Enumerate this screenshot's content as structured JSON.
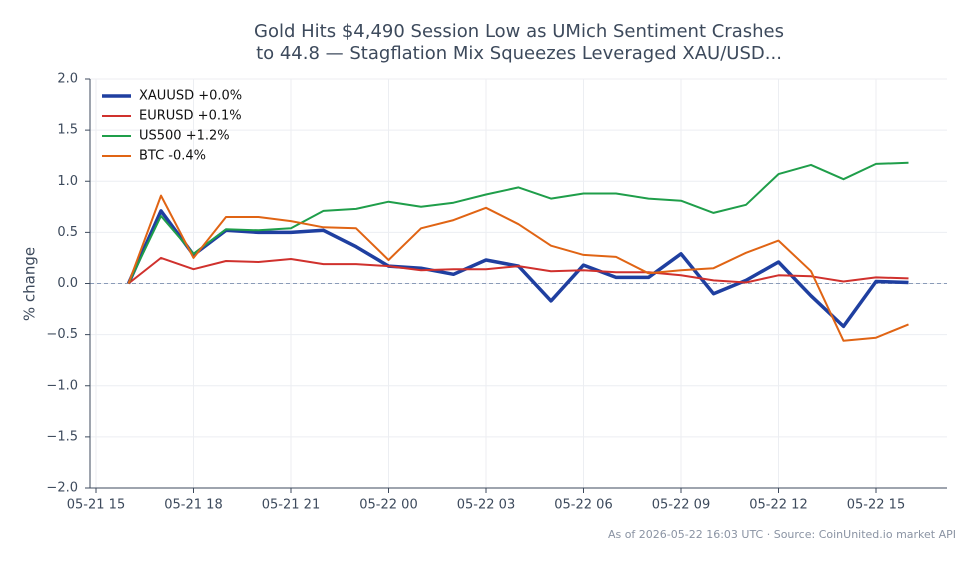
{
  "chart_data": {
    "type": "line",
    "title": "Gold Hits $4,490 Session Low as UMich Sentiment Crashes\nto 44.8 — Stagflation Mix Squeezes Leveraged XAU/USD...",
    "ylabel": "% change",
    "footer": "As of 2026-05-22 16:03 UTC · Source: CoinUnited.io market API",
    "x": [
      "05-21 16",
      "05-21 17",
      "05-21 18",
      "05-21 19",
      "05-21 20",
      "05-21 21",
      "05-21 22",
      "05-21 23",
      "05-22 00",
      "05-22 01",
      "05-22 02",
      "05-22 03",
      "05-22 04",
      "05-22 05",
      "05-22 06",
      "05-22 07",
      "05-22 08",
      "05-22 09",
      "05-22 10",
      "05-22 11",
      "05-22 12",
      "05-22 13",
      "05-22 14",
      "05-22 15",
      "05-22 16"
    ],
    "xlim": [
      "05-21 15",
      "05-22 17"
    ],
    "xticks": [
      "05-21 15",
      "05-21 18",
      "05-21 21",
      "05-22 00",
      "05-22 03",
      "05-22 06",
      "05-22 09",
      "05-22 12",
      "05-22 15"
    ],
    "ylim": [
      -2,
      2
    ],
    "yticks": [
      {
        "value": -2,
        "label": "−2.0"
      },
      {
        "value": -1.5,
        "label": "−1.5"
      },
      {
        "value": -1,
        "label": "−1.0"
      },
      {
        "value": -0.5,
        "label": "−0.5"
      },
      {
        "value": 0,
        "label": "0.0"
      },
      {
        "value": 0.5,
        "label": "0.5"
      },
      {
        "value": 1,
        "label": "1.0"
      },
      {
        "value": 1.5,
        "label": "1.5"
      },
      {
        "value": 2,
        "label": "2.0"
      }
    ],
    "grid": true,
    "legend": "upper left",
    "series": [
      {
        "name": "XAUUSD +0.0%",
        "color": "#1f3fa0",
        "linewidth": 3.5,
        "values": [
          0.0,
          0.71,
          0.28,
          0.52,
          0.5,
          0.5,
          0.52,
          0.36,
          0.17,
          0.15,
          0.09,
          0.23,
          0.17,
          -0.17,
          0.18,
          0.06,
          0.06,
          0.29,
          -0.1,
          0.03,
          0.21,
          -0.12,
          -0.42,
          0.02,
          0.01
        ]
      },
      {
        "name": "EURUSD +0.1%",
        "color": "#d0312d",
        "linewidth": 2,
        "values": [
          0.0,
          0.25,
          0.14,
          0.22,
          0.21,
          0.24,
          0.19,
          0.19,
          0.17,
          0.13,
          0.14,
          0.14,
          0.17,
          0.12,
          0.13,
          0.11,
          0.11,
          0.08,
          0.03,
          0.01,
          0.08,
          0.07,
          0.02,
          0.06,
          0.05
        ]
      },
      {
        "name": "US500 +1.2%",
        "color": "#1f9e4a",
        "linewidth": 2,
        "values": [
          0.0,
          0.66,
          0.29,
          0.53,
          0.52,
          0.54,
          0.71,
          0.73,
          0.8,
          0.75,
          0.79,
          0.87,
          0.94,
          0.83,
          0.88,
          0.88,
          0.83,
          0.81,
          0.69,
          0.77,
          1.07,
          1.16,
          1.02,
          1.17,
          1.18
        ]
      },
      {
        "name": "BTC -0.4%",
        "color": "#e06414",
        "linewidth": 2,
        "values": [
          0.0,
          0.86,
          0.25,
          0.65,
          0.65,
          0.61,
          0.55,
          0.54,
          0.23,
          0.54,
          0.62,
          0.74,
          0.58,
          0.37,
          0.28,
          0.26,
          0.1,
          0.13,
          0.15,
          0.3,
          0.42,
          0.12,
          -0.56,
          -0.53,
          -0.4
        ]
      }
    ]
  }
}
